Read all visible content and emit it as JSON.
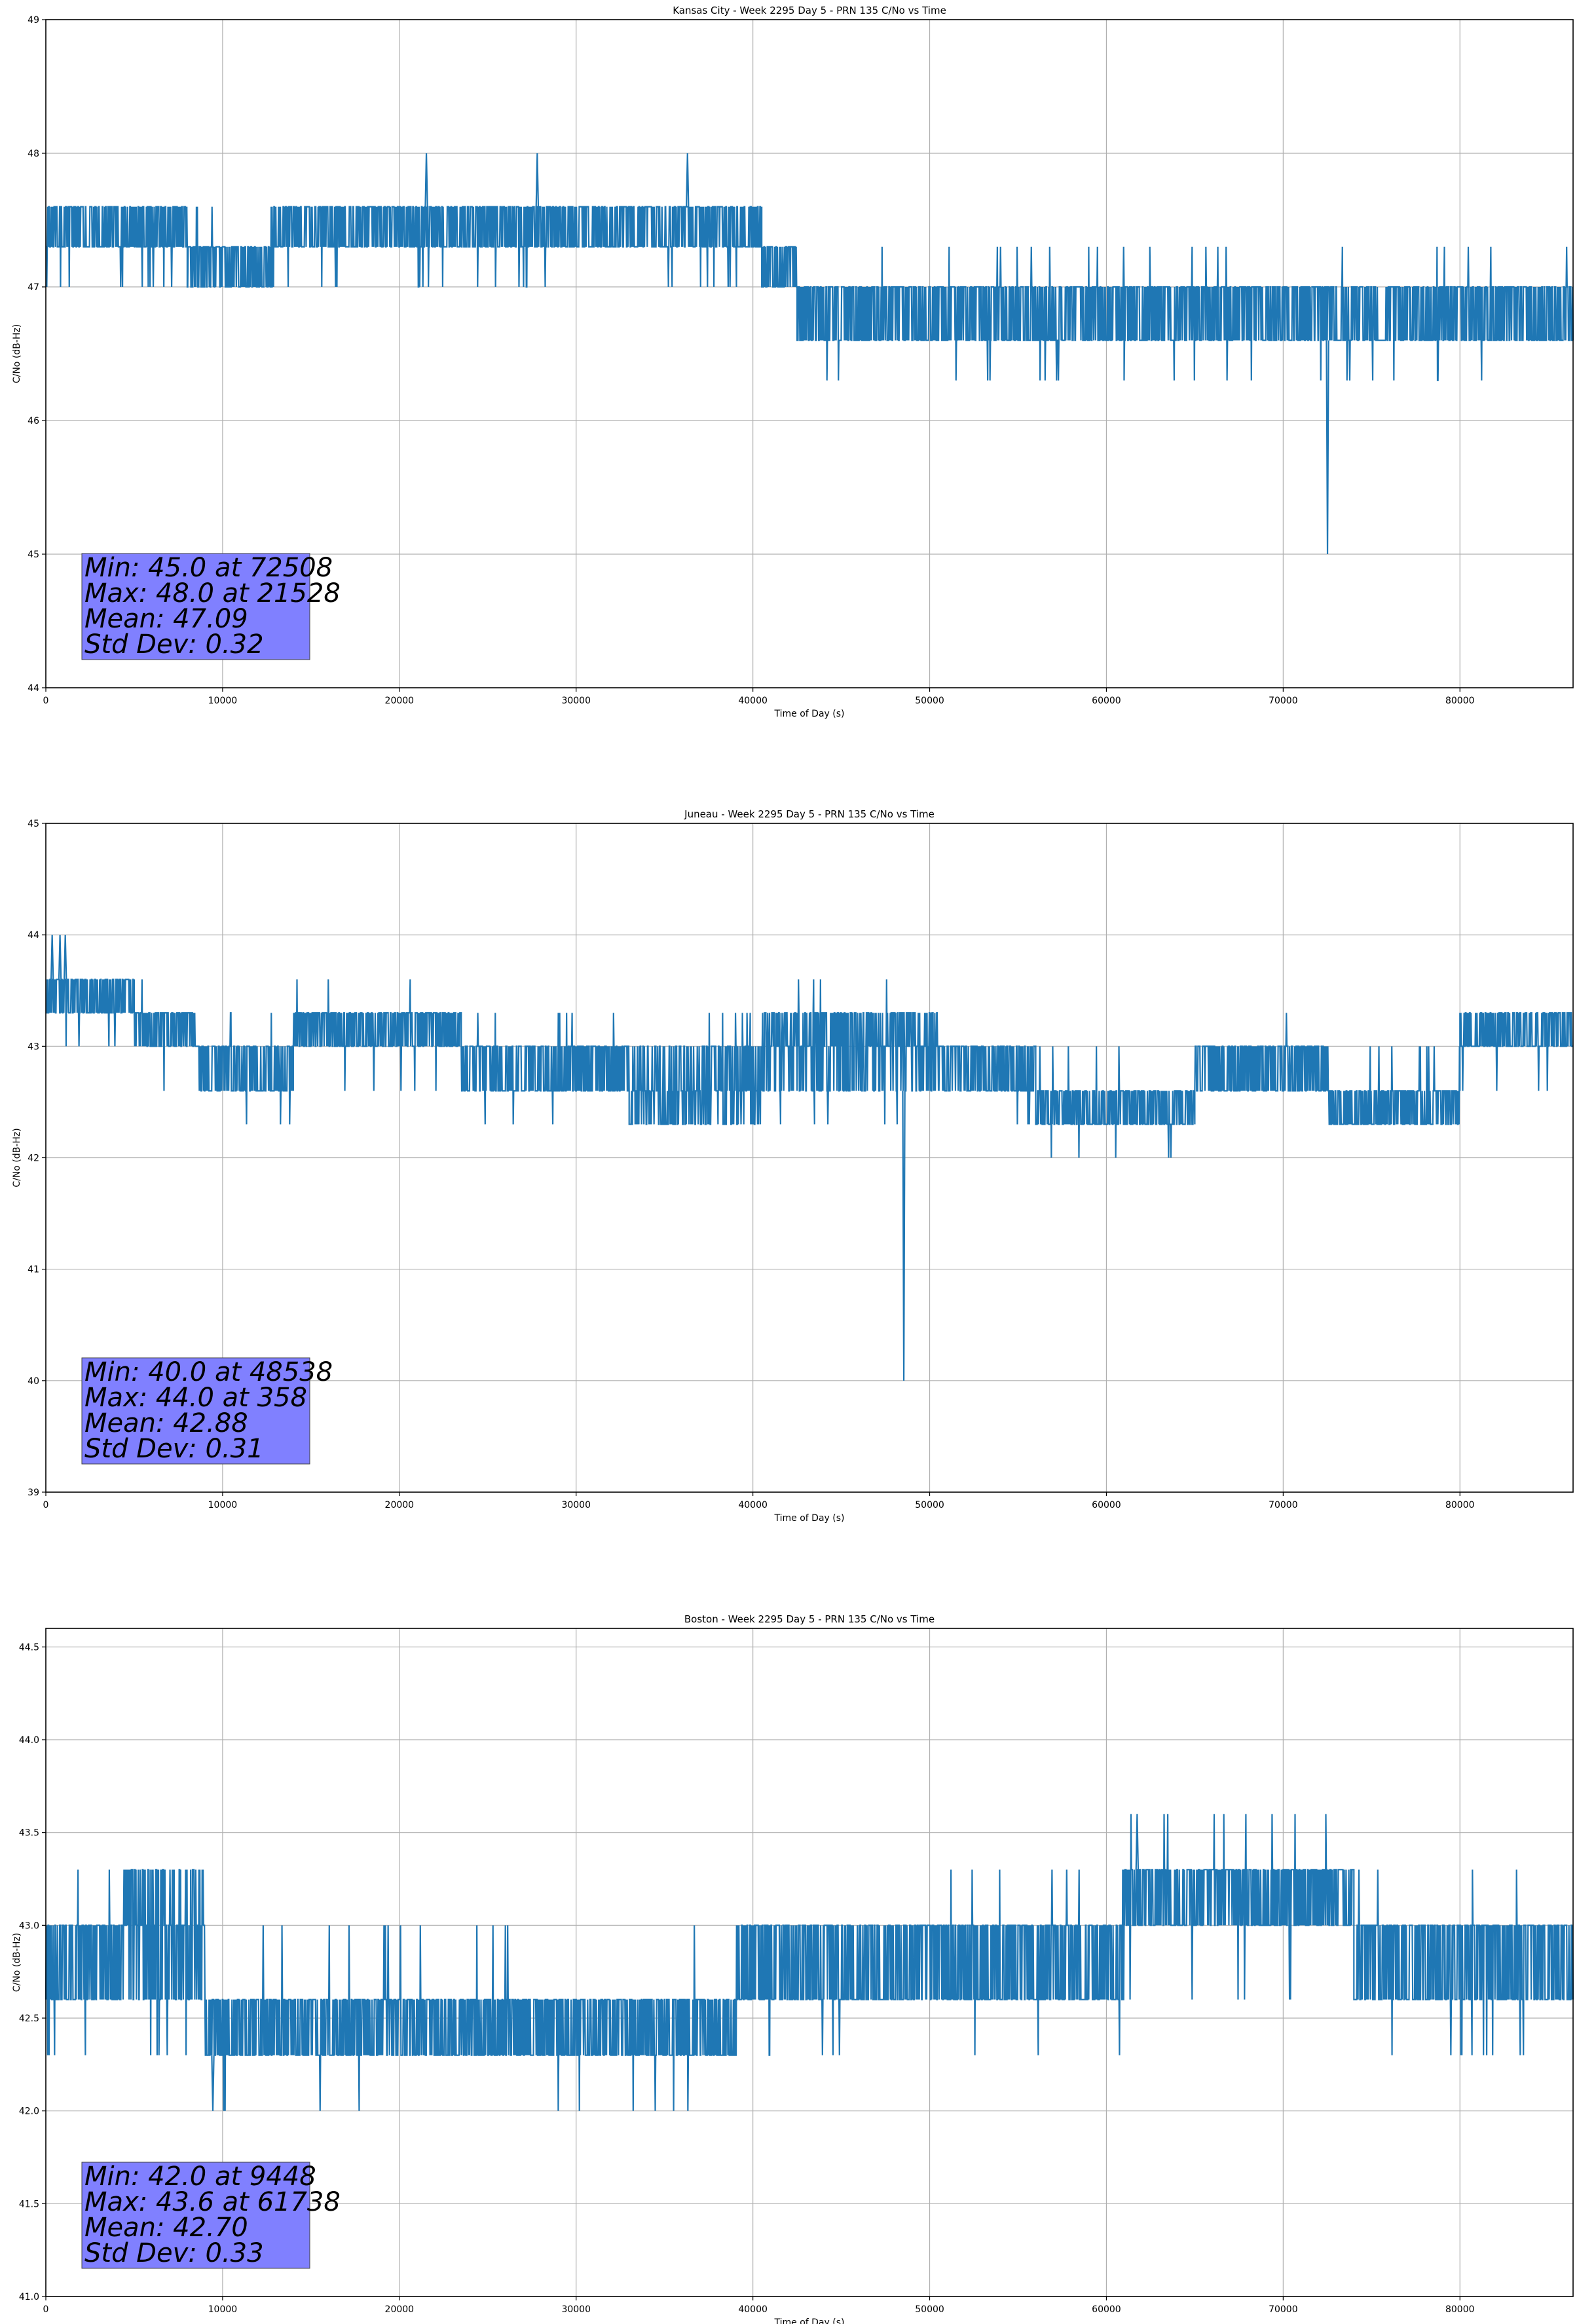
{
  "chart_data": [
    {
      "type": "line",
      "title": "Kansas City - Week 2295 Day 5 - PRN 135 C/No vs Time",
      "xlabel": "Time of Day (s)",
      "ylabel": "C/No (dB-Hz)",
      "xlim": [
        0,
        86400
      ],
      "ylim": [
        44,
        49
      ],
      "xticks": [
        0,
        10000,
        20000,
        30000,
        40000,
        50000,
        60000,
        70000,
        80000
      ],
      "xtick_labels": [
        "0",
        "10000",
        "20000",
        "30000",
        "40000",
        "50000",
        "60000",
        "70000",
        "80000"
      ],
      "yticks": [
        44,
        45,
        46,
        47,
        48,
        49
      ],
      "ytick_labels": [
        "44",
        "45",
        "46",
        "47",
        "48",
        "49"
      ],
      "grid": true,
      "quantum": 0.3,
      "segments": [
        {
          "x": [
            0,
            8000
          ],
          "levels": [
            47.3,
            47.6
          ],
          "out": [
            47.0
          ]
        },
        {
          "x": [
            8000,
            12800
          ],
          "levels": [
            47.0,
            47.3
          ],
          "out": [
            47.6
          ]
        },
        {
          "x": [
            12800,
            40500
          ],
          "levels": [
            47.3,
            47.6
          ],
          "out": [
            47.0
          ]
        },
        {
          "x": [
            40500,
            42500
          ],
          "levels": [
            47.0,
            47.3
          ],
          "out": [
            46.6
          ]
        },
        {
          "x": [
            42500,
            61000
          ],
          "levels": [
            46.6,
            47.0
          ],
          "out": [
            47.3,
            46.3
          ]
        },
        {
          "x": [
            61000,
            86400
          ],
          "levels": [
            46.6,
            47.0
          ],
          "out": [
            47.3,
            46.3
          ]
        }
      ],
      "spikes": [
        {
          "x": 21528,
          "from": 47.6,
          "to": 48.0
        },
        {
          "x": 27800,
          "from": 47.6,
          "to": 48.0
        },
        {
          "x": 36300,
          "from": 47.6,
          "to": 48.0
        },
        {
          "x": 72508,
          "from": 46.6,
          "to": 45.0
        }
      ],
      "stats": {
        "min": "Min: 45.0 at 72508",
        "max": "Max: 48.0 at 21528",
        "mean": "Mean: 47.09",
        "std": "Std Dev: 0.32"
      }
    },
    {
      "type": "line",
      "title": "Juneau - Week 2295 Day 5 - PRN 135 C/No vs Time",
      "xlabel": "Time of Day (s)",
      "ylabel": "C/No (dB-Hz)",
      "xlim": [
        0,
        86400
      ],
      "ylim": [
        39,
        45
      ],
      "xticks": [
        0,
        10000,
        20000,
        30000,
        40000,
        50000,
        60000,
        70000,
        80000
      ],
      "xtick_labels": [
        "0",
        "10000",
        "20000",
        "30000",
        "40000",
        "50000",
        "60000",
        "70000",
        "80000"
      ],
      "yticks": [
        39,
        40,
        41,
        42,
        43,
        44,
        45
      ],
      "ytick_labels": [
        "39",
        "40",
        "41",
        "42",
        "43",
        "44",
        "45"
      ],
      "grid": true,
      "quantum": 0.3,
      "segments": [
        {
          "x": [
            0,
            5000
          ],
          "levels": [
            43.3,
            43.6
          ],
          "out": [
            43.0
          ]
        },
        {
          "x": [
            5000,
            8500
          ],
          "levels": [
            43.0,
            43.3
          ],
          "out": [
            42.6,
            43.6
          ]
        },
        {
          "x": [
            8500,
            14000
          ],
          "levels": [
            42.6,
            43.0
          ],
          "out": [
            43.3,
            42.3
          ]
        },
        {
          "x": [
            14000,
            23500
          ],
          "levels": [
            43.0,
            43.3
          ],
          "out": [
            42.6,
            43.6
          ]
        },
        {
          "x": [
            23500,
            33000
          ],
          "levels": [
            42.6,
            43.0
          ],
          "out": [
            43.3,
            42.3
          ]
        },
        {
          "x": [
            33000,
            40500
          ],
          "levels": [
            42.6,
            43.0,
            42.3
          ],
          "out": [
            43.3
          ]
        },
        {
          "x": [
            40500,
            50500
          ],
          "levels": [
            43.0,
            43.3,
            42.6
          ],
          "out": [
            43.6,
            42.3
          ]
        },
        {
          "x": [
            50500,
            56000
          ],
          "levels": [
            42.6,
            43.0
          ],
          "out": [
            42.3
          ]
        },
        {
          "x": [
            56000,
            65000
          ],
          "levels": [
            42.3,
            42.6
          ],
          "out": [
            42.0,
            43.0
          ]
        },
        {
          "x": [
            65000,
            72500
          ],
          "levels": [
            42.6,
            43.0
          ],
          "out": [
            43.3
          ]
        },
        {
          "x": [
            72500,
            80000
          ],
          "levels": [
            42.3,
            42.6
          ],
          "out": [
            43.0
          ]
        },
        {
          "x": [
            80000,
            86400
          ],
          "levels": [
            43.0,
            43.3
          ],
          "out": [
            42.6
          ]
        }
      ],
      "spikes": [
        {
          "x": 358,
          "from": 43.6,
          "to": 44.0
        },
        {
          "x": 800,
          "from": 43.6,
          "to": 44.0
        },
        {
          "x": 1100,
          "from": 43.6,
          "to": 44.0
        },
        {
          "x": 48538,
          "from": 42.6,
          "to": 40.0
        }
      ],
      "stats": {
        "min": "Min: 40.0 at 48538",
        "max": "Max: 44.0 at 358",
        "mean": "Mean: 42.88",
        "std": "Std Dev: 0.31"
      }
    },
    {
      "type": "line",
      "title": "Boston - Week 2295 Day 5 - PRN 135 C/No vs Time",
      "xlabel": "Time of Day (s)",
      "ylabel": "C/No (dB-Hz)",
      "xlim": [
        0,
        86400
      ],
      "ylim": [
        41.0,
        44.6
      ],
      "xticks": [
        0,
        10000,
        20000,
        30000,
        40000,
        50000,
        60000,
        70000,
        80000
      ],
      "xtick_labels": [
        "0",
        "10000",
        "20000",
        "30000",
        "40000",
        "50000",
        "60000",
        "70000",
        "80000"
      ],
      "yticks": [
        41.0,
        41.5,
        42.0,
        42.5,
        43.0,
        43.5,
        44.0,
        44.5
      ],
      "ytick_labels": [
        "41.0",
        "41.5",
        "42.0",
        "42.5",
        "43.0",
        "43.5",
        "44.0",
        "44.5"
      ],
      "grid": true,
      "quantum": 0.3,
      "segments": [
        {
          "x": [
            0,
            4500
          ],
          "levels": [
            42.6,
            43.0
          ],
          "out": [
            43.3,
            42.3
          ]
        },
        {
          "x": [
            4500,
            9000
          ],
          "levels": [
            42.6,
            43.0,
            43.3
          ],
          "out": [
            42.3
          ]
        },
        {
          "x": [
            9000,
            14500
          ],
          "levels": [
            42.3,
            42.6
          ],
          "out": [
            42.0,
            43.0
          ]
        },
        {
          "x": [
            14500,
            19000
          ],
          "levels": [
            42.3,
            42.6
          ],
          "out": [
            42.0,
            43.0
          ]
        },
        {
          "x": [
            19000,
            28000
          ],
          "levels": [
            42.3,
            42.6
          ],
          "out": [
            43.0
          ]
        },
        {
          "x": [
            28000,
            39000
          ],
          "levels": [
            42.3,
            42.6
          ],
          "out": [
            42.0,
            43.0
          ]
        },
        {
          "x": [
            39000,
            51000
          ],
          "levels": [
            42.6,
            43.0
          ],
          "out": [
            42.3
          ]
        },
        {
          "x": [
            51000,
            61000
          ],
          "levels": [
            42.6,
            43.0
          ],
          "out": [
            43.3,
            42.3
          ]
        },
        {
          "x": [
            61000,
            74000
          ],
          "levels": [
            43.0,
            43.3
          ],
          "out": [
            43.6,
            42.6
          ]
        },
        {
          "x": [
            74000,
            86400
          ],
          "levels": [
            42.6,
            43.0
          ],
          "out": [
            43.3,
            42.3
          ]
        }
      ],
      "spikes": [
        {
          "x": 9448,
          "from": 42.3,
          "to": 42.0
        },
        {
          "x": 61738,
          "from": 43.3,
          "to": 43.6
        }
      ],
      "stats": {
        "min": "Min: 42.0 at 9448",
        "max": "Max: 43.6 at 61738",
        "mean": "Mean: 42.70",
        "std": "Std Dev: 0.33"
      }
    }
  ]
}
